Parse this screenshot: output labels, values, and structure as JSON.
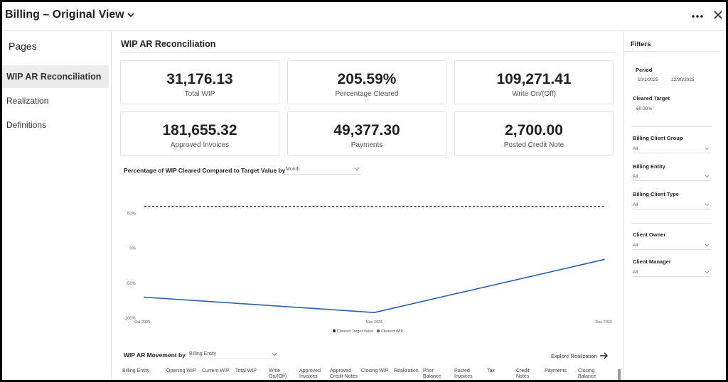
{
  "header": {
    "title": "Billing – Original View"
  },
  "nav": {
    "heading": "Pages",
    "items": [
      {
        "label": "WIP AR Reconciliation",
        "active": true
      },
      {
        "label": "Realization",
        "active": false
      },
      {
        "label": "Definitions",
        "active": false
      }
    ]
  },
  "main": {
    "title": "WIP AR Reconciliation",
    "kpis": [
      {
        "value": "31,176.13",
        "label": "Total WIP"
      },
      {
        "value": "205.59%",
        "label": "Percentage Cleared"
      },
      {
        "value": "109,271.41",
        "label": "Write On/(Off)"
      },
      {
        "value": "181,655.32",
        "label": "Approved Invoices"
      },
      {
        "value": "49,377.30",
        "label": "Payments"
      },
      {
        "value": "2,700.00",
        "label": "Posted Credit Note"
      }
    ],
    "chart_title": "Percentage of WIP Cleared Compared to Target Value by",
    "chart_select": "Month",
    "movement_title": "WIP AR Movement by",
    "movement_select": "Billing Entity",
    "explore_label": "Explore Realization",
    "columns": [
      "Billing Entity",
      "Opening WIP",
      "Current WIP",
      "Total WIP",
      "Write On/(Off)",
      "Approved Invoices",
      "Approved Credit Notes",
      "Closing WIP",
      "Realization",
      "Prior Balance",
      "Posted Invoices",
      "Tax",
      "Credit Notes",
      "Payments",
      "Closing Balance"
    ]
  },
  "chart_data": {
    "type": "line",
    "x": [
      "Oct 2025",
      "Nov 2025",
      "Dec 2025"
    ],
    "series": [
      {
        "name": "Cleared Target Value",
        "values": [
          60,
          60,
          60
        ],
        "color": "#222222",
        "style": "dashed"
      },
      {
        "name": "Cleared WIP",
        "values": [
          -70,
          -92,
          -16
        ],
        "color": "#2f5fa8",
        "style": "solid"
      }
    ],
    "y_ticks": [
      "50%",
      "0%",
      "-50%",
      "-100%"
    ],
    "ylim": [
      -100,
      75
    ],
    "legend": "bottom-center",
    "grid": false
  },
  "filters": {
    "heading": "Filters",
    "period_label": "Period",
    "period_start": "10/1/2025",
    "period_end": "12/30/2025",
    "cleared_target_label": "Cleared Target",
    "cleared_target_value": "60.00%",
    "billing_client_group_label": "Billing Client Group",
    "billing_client_group_value": "All",
    "billing_entity_label": "Billing Entity",
    "billing_entity_value": "All",
    "billing_client_type_label": "Billing Client Type",
    "billing_client_type_value": "All",
    "client_owner_label": "Client Owner",
    "client_owner_value": "All",
    "client_manager_label": "Client Manager",
    "client_manager_value": "All"
  }
}
